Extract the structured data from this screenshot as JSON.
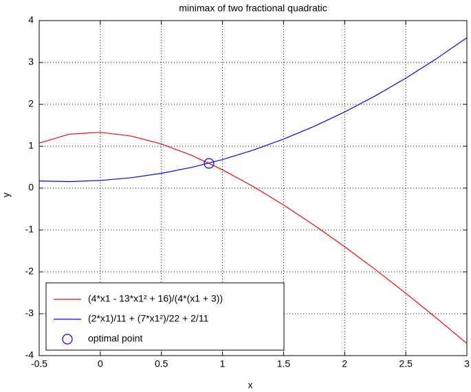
{
  "chart_data": {
    "type": "line",
    "title": "minimax of two fractional quadratic",
    "xlabel": "x",
    "ylabel": "y",
    "x": [
      -0.5,
      -0.25,
      0,
      0.25,
      0.5,
      0.75,
      1,
      1.25,
      1.5,
      1.75,
      2,
      2.25,
      2.5,
      2.75,
      3
    ],
    "series": [
      {
        "name": "(4*x1 - 13*x1² + 16)/(4*(x1 + 3))",
        "color": "#ff0000",
        "values": [
          1.075,
          1.2898,
          1.3333,
          1.2452,
          1.0536,
          0.7792,
          0.4375,
          0.0404,
          -0.4028,
          -0.8849,
          -1.4,
          -1.9435,
          -2.5114,
          -3.1005,
          -3.7083
        ]
      },
      {
        "name": "(2*x1)/11 + (7*x1²)/22 + 2/11",
        "color": "#0000ff",
        "values": [
          0.1705,
          0.1563,
          0.1818,
          0.2472,
          0.3523,
          0.4972,
          0.6818,
          0.9063,
          1.1705,
          1.4744,
          1.8182,
          2.2017,
          2.625,
          3.0881,
          3.5909
        ]
      },
      {
        "name": "optimal point",
        "color": "#0000ff",
        "type": "scatter",
        "marker": "o",
        "x": [
          0.89
        ],
        "values": [
          0.59
        ]
      }
    ],
    "xlim": [
      -0.5,
      3
    ],
    "ylim": [
      -4,
      4
    ],
    "xticks": [
      -0.5,
      0,
      0.5,
      1,
      1.5,
      2,
      2.5,
      3
    ],
    "yticks": [
      -4,
      -3,
      -2,
      -1,
      0,
      1,
      2,
      3,
      4
    ],
    "grid": true,
    "legend": "lower left"
  }
}
